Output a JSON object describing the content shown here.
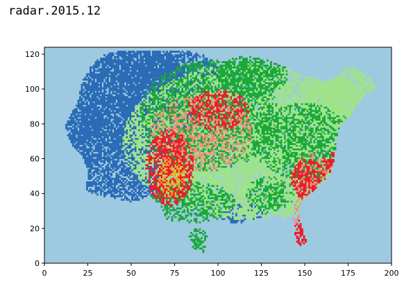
{
  "page": {
    "title": "radar.2015.12"
  },
  "chart_data": {
    "type": "heatmap",
    "title": "",
    "xlabel": "",
    "ylabel": "",
    "xlim": [
      0,
      200
    ],
    "ylim": [
      0,
      124
    ],
    "x_ticks": [
      0,
      25,
      50,
      75,
      100,
      125,
      150,
      175,
      200
    ],
    "y_ticks": [
      0,
      20,
      40,
      60,
      80,
      100,
      120
    ],
    "x_tick_labels": [
      "0",
      "25",
      "50",
      "75",
      "100",
      "125",
      "150",
      "175",
      "200"
    ],
    "y_tick_labels": [
      "0",
      "20",
      "40",
      "60",
      "80",
      "100",
      "120"
    ],
    "grid": false,
    "legend": "none",
    "colors": {
      "background": "#9ecae1",
      "level_1": "#2b6cb6",
      "level_2": "#9fe489",
      "level_3": "#1ba93a",
      "level_4": "#f08a7a",
      "level_5": "#e8202a",
      "level_6": "#f5a623"
    },
    "grid_resolution": {
      "cols": 200,
      "rows": 124
    },
    "land_outline": [
      [
        12,
        80
      ],
      [
        19,
        92
      ],
      [
        22,
        105
      ],
      [
        26,
        112
      ],
      [
        30,
        117
      ],
      [
        35,
        120
      ],
      [
        45,
        122
      ],
      [
        75,
        122
      ],
      [
        110,
        120
      ],
      [
        128,
        117
      ],
      [
        140,
        112
      ],
      [
        150,
        108
      ],
      [
        162,
        104
      ],
      [
        170,
        108
      ],
      [
        175,
        115
      ],
      [
        183,
        112
      ],
      [
        193,
        112
      ],
      [
        196,
        104
      ],
      [
        187,
        98
      ],
      [
        180,
        92
      ],
      [
        176,
        84
      ],
      [
        170,
        78
      ],
      [
        168,
        70
      ],
      [
        167,
        60
      ],
      [
        165,
        52
      ],
      [
        158,
        44
      ],
      [
        150,
        38
      ],
      [
        146,
        30
      ],
      [
        148,
        22
      ],
      [
        151,
        12
      ],
      [
        150,
        6
      ],
      [
        146,
        5
      ],
      [
        143,
        13
      ],
      [
        141,
        24
      ],
      [
        134,
        28
      ],
      [
        126,
        26
      ],
      [
        118,
        25
      ],
      [
        110,
        22
      ],
      [
        102,
        25
      ],
      [
        96,
        26
      ],
      [
        94,
        18
      ],
      [
        92,
        6
      ],
      [
        86,
        8
      ],
      [
        84,
        14
      ],
      [
        80,
        22
      ],
      [
        77,
        24
      ],
      [
        74,
        20
      ],
      [
        70,
        25
      ],
      [
        66,
        34
      ],
      [
        60,
        38
      ],
      [
        50,
        35
      ],
      [
        45,
        36
      ],
      [
        38,
        38
      ],
      [
        30,
        39
      ],
      [
        24,
        42
      ],
      [
        25,
        52
      ],
      [
        22,
        62
      ],
      [
        16,
        68
      ],
      [
        13,
        74
      ]
    ],
    "zones": [
      {
        "level": "level_1",
        "cx": 45,
        "cy": 85,
        "rx": 40,
        "ry": 50,
        "density": 0.85
      },
      {
        "level": "level_1",
        "cx": 20,
        "cy": 70,
        "rx": 12,
        "ry": 30,
        "density": 0.45
      },
      {
        "level": "level_1",
        "cx": 70,
        "cy": 110,
        "rx": 30,
        "ry": 14,
        "density": 0.75
      },
      {
        "level": "level_1",
        "cx": 115,
        "cy": 28,
        "rx": 14,
        "ry": 6,
        "density": 0.55
      },
      {
        "level": "level_2",
        "cx": 120,
        "cy": 70,
        "rx": 75,
        "ry": 45,
        "density": 0.85
      },
      {
        "level": "level_2",
        "cx": 170,
        "cy": 95,
        "rx": 22,
        "ry": 18,
        "density": 0.85
      },
      {
        "level": "level_3",
        "cx": 95,
        "cy": 85,
        "rx": 40,
        "ry": 32,
        "density": 0.55
      },
      {
        "level": "level_3",
        "cx": 120,
        "cy": 108,
        "rx": 20,
        "ry": 12,
        "density": 0.7
      },
      {
        "level": "level_3",
        "cx": 85,
        "cy": 35,
        "rx": 25,
        "ry": 12,
        "density": 0.55
      },
      {
        "level": "level_3",
        "cx": 150,
        "cy": 70,
        "rx": 30,
        "ry": 22,
        "density": 0.6
      },
      {
        "level": "level_3",
        "cx": 88,
        "cy": 12,
        "rx": 7,
        "ry": 8,
        "density": 0.6
      },
      {
        "level": "level_3",
        "cx": 130,
        "cy": 40,
        "rx": 14,
        "ry": 10,
        "density": 0.5
      },
      {
        "level": "level_4",
        "cx": 90,
        "cy": 75,
        "rx": 30,
        "ry": 22,
        "density": 0.45
      },
      {
        "level": "level_4",
        "cx": 155,
        "cy": 50,
        "rx": 12,
        "ry": 14,
        "density": 0.45
      },
      {
        "level": "level_4",
        "cx": 148,
        "cy": 28,
        "rx": 5,
        "ry": 10,
        "density": 0.5
      },
      {
        "level": "level_5",
        "cx": 72,
        "cy": 55,
        "rx": 14,
        "ry": 22,
        "density": 0.7
      },
      {
        "level": "level_5",
        "cx": 100,
        "cy": 88,
        "rx": 18,
        "ry": 12,
        "density": 0.55
      },
      {
        "level": "level_5",
        "cx": 152,
        "cy": 48,
        "rx": 10,
        "ry": 12,
        "density": 0.65
      },
      {
        "level": "level_5",
        "cx": 148,
        "cy": 18,
        "rx": 4,
        "ry": 8,
        "density": 0.6
      },
      {
        "level": "level_5",
        "cx": 165,
        "cy": 58,
        "rx": 5,
        "ry": 6,
        "density": 0.6
      },
      {
        "level": "level_6",
        "cx": 73,
        "cy": 50,
        "rx": 8,
        "ry": 12,
        "density": 0.5
      }
    ]
  }
}
